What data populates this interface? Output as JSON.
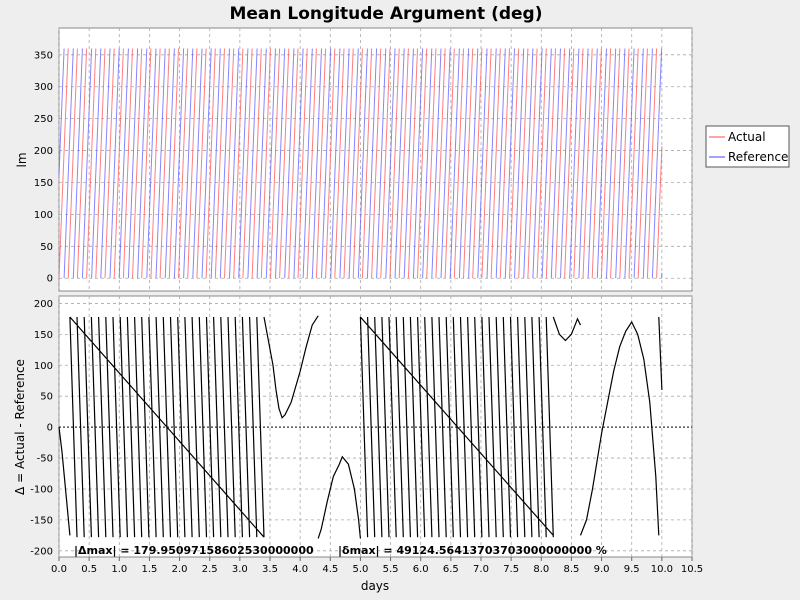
{
  "chart_data": [
    {
      "type": "line",
      "title": "Mean Longitude Argument (deg)",
      "ylabel": "lm",
      "xlabel": "",
      "xlim": [
        0,
        10.5
      ],
      "ylim": [
        -20,
        392
      ],
      "yticks": [
        0,
        50,
        100,
        150,
        200,
        250,
        300,
        350
      ],
      "grid": true,
      "legend": "right",
      "series": [
        {
          "name": "Actual",
          "color": "#ff6666",
          "period_days": 0.1525,
          "phase": 0,
          "x_range": [
            0,
            10
          ]
        },
        {
          "name": "Reference",
          "color": "#6666ff",
          "period_days": 0.1525,
          "phase": 0.45,
          "x_range": [
            0,
            10
          ]
        }
      ]
    },
    {
      "type": "line",
      "xlabel": "days",
      "ylabel": "Δ = Actual - Reference",
      "xlim": [
        0,
        10.5
      ],
      "ylim": [
        -210,
        212
      ],
      "xticks": [
        0.0,
        0.5,
        1.0,
        1.5,
        2.0,
        2.5,
        3.0,
        3.5,
        4.0,
        4.5,
        5.0,
        5.5,
        6.0,
        6.5,
        7.0,
        7.5,
        8.0,
        8.5,
        9.0,
        9.5,
        10.0,
        10.5
      ],
      "xtick_labels": [
        "0.0",
        "0.5",
        "1.0",
        "1.5",
        "2.0",
        "2.5",
        "3.0",
        "3.5",
        "4.0",
        "4.5",
        "5.0",
        "5.5",
        "6.0",
        "6.5",
        "7.0",
        "7.5",
        "8.0",
        "8.5",
        "9.0",
        "9.5",
        "10.0",
        "10.5"
      ],
      "yticks": [
        -200,
        -150,
        -100,
        -50,
        0,
        50,
        100,
        150,
        200
      ],
      "grid": true,
      "zero_line": true,
      "series": [
        {
          "color": "#000000",
          "sawtooth_segments": [
            {
              "x0": 0.18,
              "x1": 3.4,
              "count": 27
            },
            {
              "x0": 5.0,
              "x1": 8.2,
              "count": 27
            }
          ],
          "points": [
            [
              0.0,
              0
            ],
            [
              0.05,
              -40
            ],
            [
              0.18,
              -175
            ],
            [
              0.18,
              178
            ],
            [
              3.4,
              -178
            ],
            [
              3.4,
              178
            ],
            [
              3.55,
              100
            ],
            [
              3.6,
              60
            ],
            [
              3.65,
              30
            ],
            [
              3.7,
              15
            ],
            [
              3.75,
              20
            ],
            [
              3.85,
              40
            ],
            [
              4.0,
              90
            ],
            [
              4.1,
              130
            ],
            [
              4.2,
              165
            ],
            [
              4.3,
              180
            ],
            [
              4.3,
              -180
            ],
            [
              4.35,
              -165
            ],
            [
              4.45,
              -120
            ],
            [
              4.55,
              -80
            ],
            [
              4.65,
              -60
            ],
            [
              4.7,
              -48
            ],
            [
              4.8,
              -60
            ],
            [
              4.9,
              -100
            ],
            [
              4.97,
              -150
            ],
            [
              5.0,
              -180
            ],
            [
              5.0,
              178
            ],
            [
              8.2,
              -175
            ],
            [
              8.2,
              178
            ],
            [
              8.3,
              150
            ],
            [
              8.4,
              140
            ],
            [
              8.5,
              150
            ],
            [
              8.6,
              175
            ],
            [
              8.65,
              165
            ],
            [
              8.65,
              -175
            ],
            [
              8.75,
              -150
            ],
            [
              8.85,
              -100
            ],
            [
              9.0,
              -10
            ],
            [
              9.1,
              40
            ],
            [
              9.2,
              90
            ],
            [
              9.3,
              130
            ],
            [
              9.4,
              155
            ],
            [
              9.5,
              170
            ],
            [
              9.6,
              150
            ],
            [
              9.7,
              110
            ],
            [
              9.8,
              40
            ],
            [
              9.9,
              -80
            ],
            [
              9.95,
              -175
            ],
            [
              9.95,
              178
            ],
            [
              10.0,
              60
            ]
          ]
        }
      ],
      "annotations": {
        "delta_max": "|Δmax| = 179.95097158602530000000",
        "delta_pct": "|δmax| = 49124.56413703703000000000 %"
      }
    }
  ]
}
